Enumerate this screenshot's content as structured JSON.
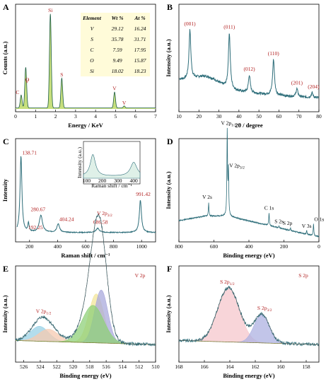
{
  "chart_data": [
    {
      "panel": "A",
      "type": "bar",
      "xlabel": "Energy / KeV",
      "ylabel": "Counts (a.u.)",
      "xlim": [
        0,
        7
      ],
      "xticks": [
        "0",
        "1",
        "2",
        "3",
        "4",
        "5",
        "6",
        "7"
      ],
      "peaks": [
        {
          "label": "C",
          "x": 0.28,
          "h": 0.13
        },
        {
          "label": "O",
          "x": 0.52,
          "h": 0.18
        },
        {
          "label": "V",
          "x": 0.5,
          "h": 0.24
        },
        {
          "label": "Si",
          "x": 1.74,
          "h": 0.95
        },
        {
          "label": "S",
          "x": 2.31,
          "h": 0.3
        },
        {
          "label": "V",
          "x": 4.95,
          "h": 0.16
        },
        {
          "label": "V",
          "x": 5.43,
          "h": 0.02
        }
      ],
      "table": {
        "headers": [
          "Element",
          "Wt %",
          "At %"
        ],
        "rows": [
          [
            "V",
            "29.12",
            "16.24"
          ],
          [
            "S",
            "35.78",
            "31.71"
          ],
          [
            "C",
            "7.59",
            "17.95"
          ],
          [
            "O",
            "9.49",
            "15.87"
          ],
          [
            "Si",
            "18.02",
            "18.23"
          ]
        ]
      },
      "colors": {
        "fill": "#c7df7d",
        "line": "#1f5f46",
        "table_bg": "#fffbd9"
      }
    },
    {
      "panel": "B",
      "type": "line",
      "xlabel": "2θ / degree",
      "ylabel": "Intensity (a.u.)",
      "xlim": [
        10,
        80
      ],
      "xticks": [
        "10",
        "20",
        "30",
        "40",
        "50",
        "60",
        "70",
        "80"
      ],
      "peaks": [
        {
          "label": "(001)",
          "x": 15.5,
          "h": 0.62
        },
        {
          "label": "(011)",
          "x": 35.2,
          "h": 0.7
        },
        {
          "label": "(012)",
          "x": 45.2,
          "h": 0.22
        },
        {
          "label": "(110)",
          "x": 57.3,
          "h": 0.45
        },
        {
          "label": "(201)",
          "x": 69.0,
          "h": 0.1
        },
        {
          "label": "(204)",
          "x": 76.6,
          "h": 0.06
        }
      ],
      "colors": {
        "line": "#2e6e7a"
      }
    },
    {
      "panel": "C",
      "type": "line",
      "xlabel": "Raman shift / cm⁻¹",
      "ylabel": "Intensity",
      "xlim": [
        100,
        1100
      ],
      "xticks": [
        "200",
        "400",
        "600",
        "800",
        "1000"
      ],
      "peaks": [
        {
          "label": "138.71",
          "x": 138.71,
          "h": 0.9
        },
        {
          "label": "192.25",
          "x": 192.25,
          "h": 0.1
        },
        {
          "label": "280.67",
          "x": 280.67,
          "h": 0.2
        },
        {
          "label": "404.24",
          "x": 404.24,
          "h": 0.1
        },
        {
          "label": "686.58",
          "x": 686.58,
          "h": 0.05
        },
        {
          "label": "991.42",
          "x": 991.42,
          "h": 0.38
        }
      ],
      "inset": {
        "xlabel": "Raman shift / cm⁻¹",
        "ylabel": "Intensity (a.u.)",
        "xticks": [
          "100",
          "200",
          "300",
          "400"
        ]
      },
      "colors": {
        "line": "#2e6e7a",
        "inset_fill": "#dff0e8"
      }
    },
    {
      "panel": "D",
      "type": "line",
      "xlabel": "Binding energy (eV)",
      "ylabel": "Intensity (a.u.)",
      "xlim": [
        800,
        0
      ],
      "xticks": [
        "800",
        "600",
        "400",
        "200",
        "0"
      ],
      "peaks": [
        {
          "label": "V 2s",
          "x": 630,
          "h": 0.14
        },
        {
          "label": "V 2p1/2",
          "x": 524,
          "h": 0.92
        },
        {
          "label": "V 2p3/2",
          "x": 517,
          "h": 0.48
        },
        {
          "label": "C 1s",
          "x": 285,
          "h": 0.14
        },
        {
          "label": "S 2s",
          "x": 228,
          "h": 0.02
        },
        {
          "label": "S 2p",
          "x": 163,
          "h": 0.03
        },
        {
          "label": "V 3s",
          "x": 70,
          "h": 0.04
        },
        {
          "label": "O 1s",
          "x": 31,
          "h": 0.13
        }
      ],
      "colors": {
        "line": "#2e6e7a"
      }
    },
    {
      "panel": "E",
      "type": "area",
      "xlabel": "Binding energy (eV)",
      "ylabel": "Intensity (a.u.)",
      "xlim": [
        527,
        510
      ],
      "xticks": [
        "526",
        "524",
        "522",
        "520",
        "518",
        "516",
        "514",
        "512",
        "510"
      ],
      "title": "V 2p",
      "peaks": [
        {
          "label": "V 2p1/2",
          "x": 523.6,
          "h": 0.3
        },
        {
          "label": "V 2p3/2",
          "x": 516.7,
          "h": 0.9
        }
      ],
      "components": [
        {
          "c": 524.1,
          "w": 1.1,
          "h": 0.22,
          "color": "#9ad1e6"
        },
        {
          "c": 523.0,
          "w": 1.2,
          "h": 0.18,
          "color": "#f5c9b0"
        },
        {
          "c": 517.2,
          "w": 0.9,
          "h": 0.72,
          "color": "#f3e59a"
        },
        {
          "c": 516.6,
          "w": 0.8,
          "h": 0.78,
          "color": "#a9a9dc"
        },
        {
          "c": 517.6,
          "w": 1.3,
          "h": 0.55,
          "color": "#8fd07a"
        }
      ],
      "colors": {
        "line": "#2e6e7a",
        "envelope": "#555555"
      }
    },
    {
      "panel": "F",
      "type": "area",
      "xlabel": "Binding energy (eV)",
      "ylabel": "Intensity (a.u.)",
      "xlim": [
        168,
        157
      ],
      "xticks": [
        "168",
        "166",
        "164",
        "162",
        "160",
        "158"
      ],
      "title": "S 2p",
      "peaks": [
        {
          "label": "S 2p1/2",
          "x": 164.2,
          "h": 0.82
        },
        {
          "label": "S 2p3/2",
          "x": 161.6,
          "h": 0.45
        }
      ],
      "components": [
        {
          "c": 164.1,
          "w": 0.85,
          "h": 0.8,
          "color": "#f5c7cc"
        },
        {
          "c": 161.5,
          "w": 0.6,
          "h": 0.42,
          "color": "#aeb2e2"
        }
      ],
      "colors": {
        "line": "#2e6e7a",
        "envelope": "#555555"
      }
    }
  ]
}
